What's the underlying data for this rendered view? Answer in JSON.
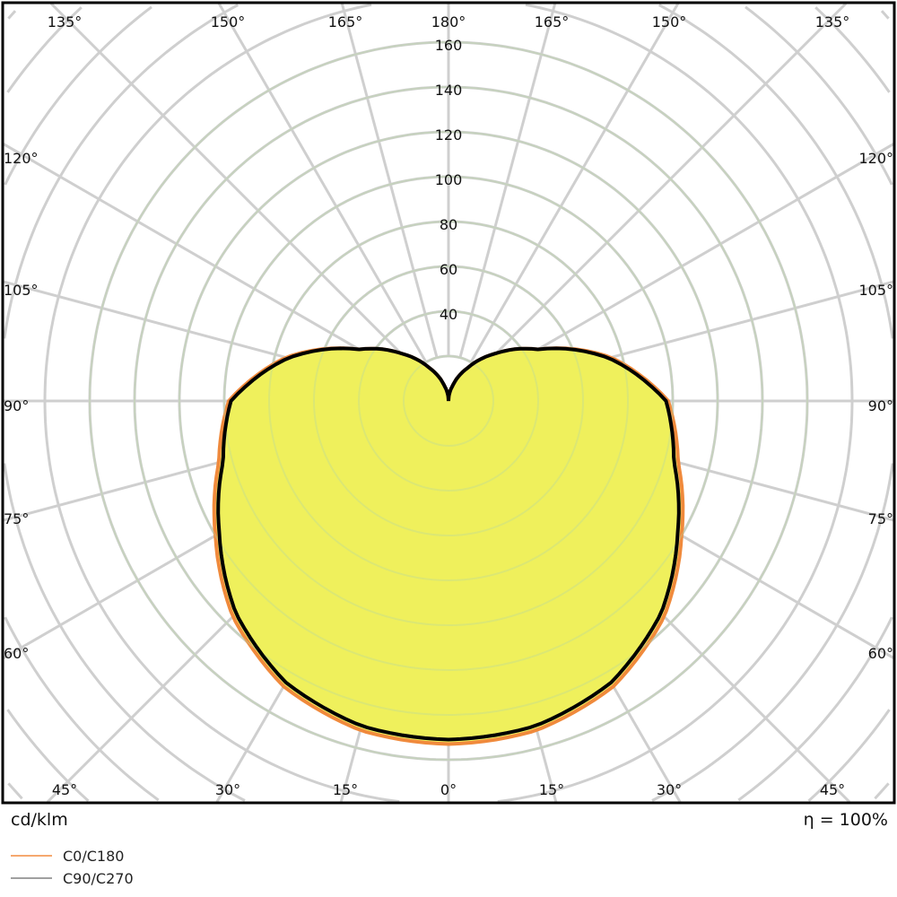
{
  "chart_data": {
    "type": "polar",
    "unit_label": "cd/klm",
    "efficiency_label": "η = 100%",
    "radial_ticks": [
      40,
      60,
      80,
      100,
      120,
      140,
      160
    ],
    "radial_grid_step": 20,
    "angle_step": 15,
    "angle_labels": {
      "top": [
        "135°",
        "150°",
        "165°",
        "180°",
        "165°",
        "150°",
        "135°"
      ],
      "bottom": [
        "45°",
        "30°",
        "15°",
        "0°",
        "15°",
        "30°",
        "45°"
      ],
      "left": [
        "120°",
        "105°",
        "90°",
        "75°",
        "60°"
      ],
      "right": [
        "120°",
        "105°",
        "90°",
        "75°",
        "60°"
      ]
    },
    "angles": [
      0,
      15,
      30,
      45,
      60,
      75,
      90,
      105,
      120,
      135,
      150,
      165,
      180
    ],
    "series": [
      {
        "name": "C0/C180",
        "color": "#f08a3c",
        "values": [
          153,
          152,
          147,
          136,
          120,
          106,
          98,
          75,
          46,
          30,
          17,
          7,
          0
        ]
      },
      {
        "name": "C90/C270",
        "color": "#000000",
        "legend_color": "#a0a0a0",
        "values": [
          151,
          150,
          145,
          134,
          118,
          104,
          97,
          74,
          46,
          30,
          17,
          7,
          0
        ]
      }
    ],
    "fill_color": "#eff05c",
    "grid": true,
    "legend_placement": "bottom-left"
  }
}
